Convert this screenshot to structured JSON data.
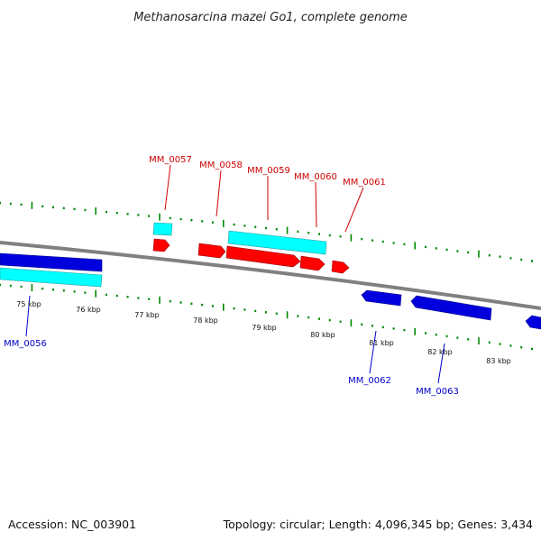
{
  "title": "Methanosarcina mazei Go1, complete genome",
  "footer": {
    "accession": "Accession: NC_003901",
    "summary": "Topology: circular; Length: 4,096,345 bp; Genes: 3,434"
  },
  "colors": {
    "backbone": "#808080",
    "forward_cds": "#ff0000",
    "reverse_cds": "#0000dd",
    "gene_top": "#00ffff",
    "gene_bottom": "#00ffff",
    "tick": "#008800",
    "label_forward": "#cc0000",
    "label_reverse": "#0000cc"
  },
  "kbp_labels": [
    "75 kbp",
    "76 kbp",
    "77 kbp",
    "78 kbp",
    "79 kbp",
    "80 kbp",
    "81 kbp",
    "82 kbp",
    "83 kbp"
  ],
  "forward_gene_labels": [
    "MM_0057",
    "MM_0058",
    "MM_0059",
    "MM_0060",
    "MM_0061"
  ],
  "reverse_gene_labels": [
    "MM_0056",
    "MM_0062",
    "MM_0063"
  ]
}
